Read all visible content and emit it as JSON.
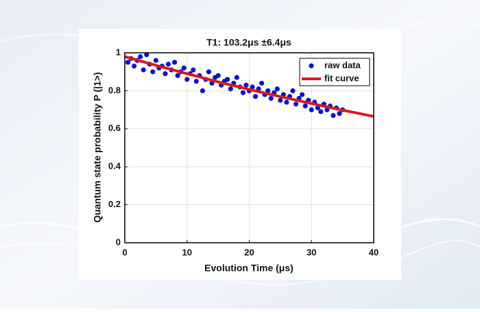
{
  "chart_data": {
    "type": "scatter",
    "title": "T1: 103.2μs ±6.4μs",
    "xlabel": "Evolution Time (μs)",
    "ylabel": "Quantum state probability P (|1>)",
    "xlim": [
      0,
      40
    ],
    "xticks": [
      0,
      10,
      20,
      30,
      40
    ],
    "ylim": [
      0,
      1
    ],
    "yticks": [
      0,
      0.2,
      0.4,
      0.6,
      0.8,
      1
    ],
    "grid": true,
    "legend": "upper right",
    "series": [
      {
        "name": "raw data",
        "type": "scatter",
        "color": "#0a14c8",
        "x": [
          0.5,
          1,
          1.5,
          2,
          2.5,
          3,
          3.5,
          4,
          4.5,
          5,
          5.5,
          6,
          6.5,
          7,
          7.5,
          8,
          8.5,
          9,
          9.5,
          10,
          10.5,
          11,
          11.5,
          12,
          12.5,
          13,
          13.5,
          14,
          14.5,
          15,
          15.5,
          16,
          16.5,
          17,
          17.5,
          18,
          18.5,
          19,
          19.5,
          20,
          20.5,
          21,
          21.5,
          22,
          22.5,
          23,
          23.5,
          24,
          24.5,
          25,
          25.5,
          26,
          26.5,
          27,
          27.5,
          28,
          28.5,
          29,
          29.5,
          30,
          30.5,
          31,
          31.5,
          32,
          32.5,
          33,
          33.5,
          34,
          34.5,
          35
        ],
        "values": [
          0.95,
          0.97,
          0.93,
          0.96,
          0.98,
          0.91,
          0.99,
          0.94,
          0.9,
          0.96,
          0.92,
          0.93,
          0.89,
          0.94,
          0.91,
          0.95,
          0.88,
          0.9,
          0.92,
          0.86,
          0.89,
          0.91,
          0.85,
          0.88,
          0.8,
          0.86,
          0.9,
          0.84,
          0.87,
          0.88,
          0.83,
          0.85,
          0.86,
          0.81,
          0.84,
          0.87,
          0.82,
          0.79,
          0.83,
          0.8,
          0.82,
          0.77,
          0.81,
          0.84,
          0.78,
          0.8,
          0.76,
          0.79,
          0.81,
          0.75,
          0.78,
          0.74,
          0.77,
          0.8,
          0.73,
          0.76,
          0.78,
          0.72,
          0.75,
          0.7,
          0.74,
          0.71,
          0.69,
          0.73,
          0.7,
          0.72,
          0.67,
          0.71,
          0.68,
          0.7
        ]
      },
      {
        "name": "fit curve",
        "type": "line",
        "color": "#e01818",
        "x": [
          0,
          5,
          10,
          15,
          20,
          25,
          30,
          35,
          40
        ],
        "values": [
          0.98,
          0.934,
          0.89,
          0.847,
          0.807,
          0.769,
          0.733,
          0.698,
          0.665
        ]
      }
    ]
  }
}
